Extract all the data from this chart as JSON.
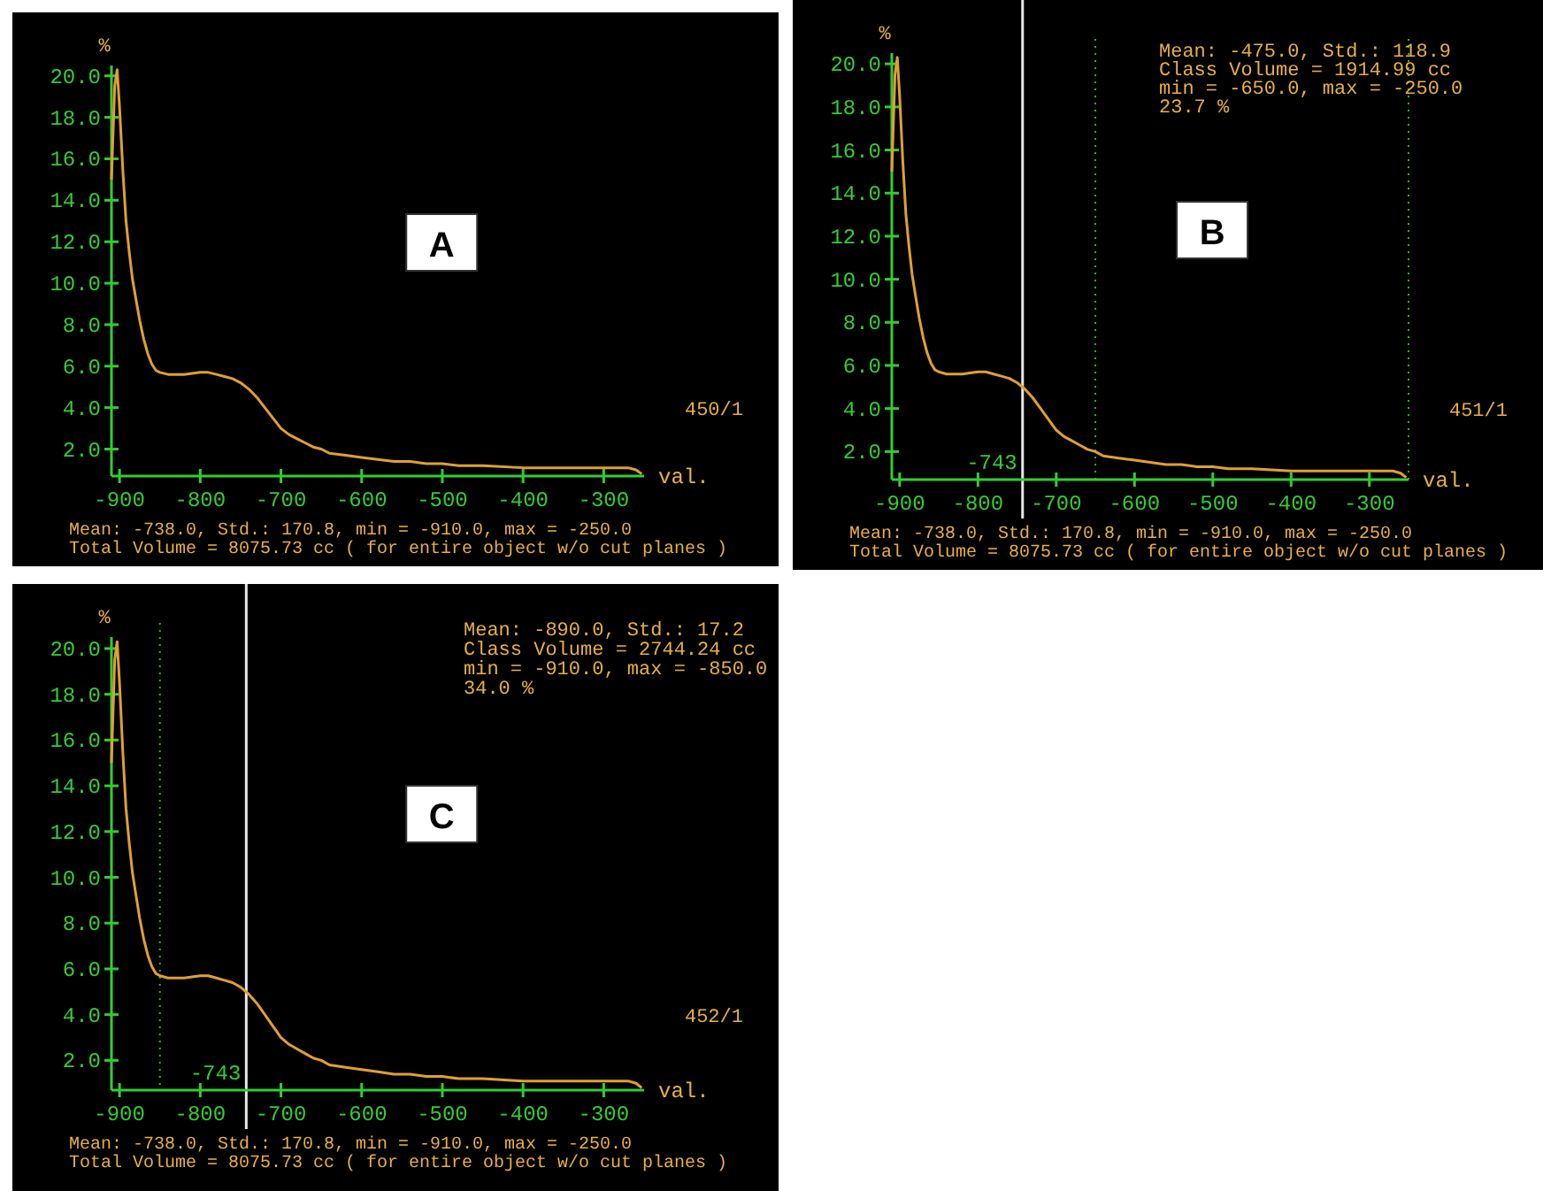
{
  "chart_data": [
    {
      "type": "line",
      "title": "A",
      "xlabel": "val.",
      "ylabel": "%",
      "xlim": [
        -910,
        -250
      ],
      "ylim": [
        0.7,
        20.5
      ],
      "xticks": [
        -900,
        -800,
        -700,
        -600,
        -500,
        -400,
        -300
      ],
      "yticks": [
        {
          "value": 2,
          "label": "2.0"
        },
        {
          "value": 4,
          "label": "4.0"
        },
        {
          "value": 6,
          "label": "6.0"
        },
        {
          "value": 8,
          "label": "8.0"
        },
        {
          "value": 10,
          "label": "10.0"
        },
        {
          "value": 12,
          "label": "12.0"
        },
        {
          "value": 14,
          "label": "14.0"
        },
        {
          "value": 16,
          "label": "16.0"
        },
        {
          "value": 18,
          "label": "18.0"
        },
        {
          "value": 20,
          "label": "20.0"
        }
      ],
      "grid": false,
      "marker": "none",
      "line_style": "solid",
      "series": [
        {
          "color": "#e0a030",
          "x": [
            -910,
            -906,
            -903,
            -900,
            -896,
            -892,
            -888,
            -884,
            -880,
            -875,
            -870,
            -865,
            -860,
            -855,
            -850,
            -840,
            -820,
            -800,
            -790,
            -780,
            -770,
            -760,
            -750,
            -740,
            -730,
            -720,
            -710,
            -700,
            -690,
            -680,
            -670,
            -660,
            -650,
            -640,
            -620,
            -600,
            -580,
            -560,
            -540,
            -520,
            -500,
            -480,
            -450,
            -400,
            -350,
            -300,
            -270,
            -260,
            -253
          ],
          "values": [
            15,
            19.5,
            20.3,
            18.5,
            15.5,
            13,
            11.5,
            10.2,
            9.3,
            8.2,
            7.3,
            6.6,
            6.1,
            5.8,
            5.7,
            5.6,
            5.6,
            5.7,
            5.7,
            5.6,
            5.5,
            5.4,
            5.2,
            4.9,
            4.5,
            4.0,
            3.5,
            3.0,
            2.7,
            2.5,
            2.3,
            2.1,
            2.0,
            1.8,
            1.7,
            1.6,
            1.5,
            1.4,
            1.4,
            1.3,
            1.3,
            1.2,
            1.2,
            1.1,
            1.1,
            1.1,
            1.1,
            1.0,
            0.8
          ]
        }
      ],
      "annotations": [
        "450/1",
        "Mean: -738.0, Std.: 170.8, min = -910.0, max = -250.0",
        "Total Volume = 8075.73 cc ( for entire object w/o cut planes )"
      ]
    },
    {
      "type": "line",
      "title": "B",
      "xlabel": "val.",
      "ylabel": "%",
      "xlim": [
        -910,
        -250
      ],
      "ylim": [
        0.7,
        20.5
      ],
      "xticks": [
        -900,
        -800,
        -700,
        -600,
        -500,
        -400,
        -300
      ],
      "yticks": [
        {
          "value": 2,
          "label": "2.0"
        },
        {
          "value": 4,
          "label": "4.0"
        },
        {
          "value": 6,
          "label": "6.0"
        },
        {
          "value": 8,
          "label": "8.0"
        },
        {
          "value": 10,
          "label": "10.0"
        },
        {
          "value": 12,
          "label": "12.0"
        },
        {
          "value": 14,
          "label": "14.0"
        },
        {
          "value": 16,
          "label": "16.0"
        },
        {
          "value": 18,
          "label": "18.0"
        },
        {
          "value": 20,
          "label": "20.0"
        }
      ],
      "grid": false,
      "marker": "none",
      "line_style": "solid",
      "series": [
        {
          "color": "#e0a030",
          "x": [
            -910,
            -906,
            -903,
            -900,
            -896,
            -892,
            -888,
            -884,
            -880,
            -875,
            -870,
            -865,
            -860,
            -855,
            -850,
            -840,
            -820,
            -800,
            -790,
            -780,
            -770,
            -760,
            -750,
            -740,
            -730,
            -720,
            -710,
            -700,
            -690,
            -680,
            -670,
            -660,
            -650,
            -640,
            -620,
            -600,
            -580,
            -560,
            -540,
            -520,
            -500,
            -480,
            -450,
            -400,
            -350,
            -300,
            -270,
            -260,
            -253
          ],
          "values": [
            15,
            19.5,
            20.3,
            18.5,
            15.5,
            13,
            11.5,
            10.2,
            9.3,
            8.2,
            7.3,
            6.6,
            6.1,
            5.8,
            5.7,
            5.6,
            5.6,
            5.7,
            5.7,
            5.6,
            5.5,
            5.4,
            5.2,
            4.9,
            4.5,
            4.0,
            3.5,
            3.0,
            2.7,
            2.5,
            2.3,
            2.1,
            2.0,
            1.8,
            1.7,
            1.6,
            1.5,
            1.4,
            1.4,
            1.3,
            1.3,
            1.2,
            1.2,
            1.1,
            1.1,
            1.1,
            1.1,
            1.0,
            0.8
          ]
        }
      ],
      "ref_lines": [
        {
          "axis": "x",
          "value": -743,
          "label": "-743",
          "color": "#e8e8e8",
          "line_style": "solid"
        },
        {
          "axis": "x",
          "value": -650,
          "color": "#22bb22",
          "line_style": "dotted"
        },
        {
          "axis": "x",
          "value": -250,
          "color": "#22bb22",
          "line_style": "dotted"
        }
      ],
      "annotations": [
        "Mean: -475.0, Std.: 118.9",
        "Class Volume = 1914.99 cc",
        "min = -650.0, max = -250.0",
        "23.7 %",
        "451/1",
        "Mean: -738.0, Std.: 170.8, min = -910.0, max = -250.0",
        "Total Volume = 8075.73 cc ( for entire object w/o cut planes )"
      ]
    },
    {
      "type": "line",
      "title": "C",
      "xlabel": "val.",
      "ylabel": "%",
      "xlim": [
        -910,
        -250
      ],
      "ylim": [
        0.7,
        20.5
      ],
      "xticks": [
        -900,
        -800,
        -700,
        -600,
        -500,
        -400,
        -300
      ],
      "yticks": [
        {
          "value": 2,
          "label": "2.0"
        },
        {
          "value": 4,
          "label": "4.0"
        },
        {
          "value": 6,
          "label": "6.0"
        },
        {
          "value": 8,
          "label": "8.0"
        },
        {
          "value": 10,
          "label": "10.0"
        },
        {
          "value": 12,
          "label": "12.0"
        },
        {
          "value": 14,
          "label": "14.0"
        },
        {
          "value": 16,
          "label": "16.0"
        },
        {
          "value": 18,
          "label": "18.0"
        },
        {
          "value": 20,
          "label": "20.0"
        }
      ],
      "grid": false,
      "marker": "none",
      "line_style": "solid",
      "series": [
        {
          "color": "#e0a030",
          "x": [
            -910,
            -906,
            -903,
            -900,
            -896,
            -892,
            -888,
            -884,
            -880,
            -875,
            -870,
            -865,
            -860,
            -855,
            -850,
            -840,
            -820,
            -800,
            -790,
            -780,
            -770,
            -760,
            -750,
            -740,
            -730,
            -720,
            -710,
            -700,
            -690,
            -680,
            -670,
            -660,
            -650,
            -640,
            -620,
            -600,
            -580,
            -560,
            -540,
            -520,
            -500,
            -480,
            -450,
            -400,
            -350,
            -300,
            -270,
            -260,
            -253
          ],
          "values": [
            15,
            19.5,
            20.3,
            18.5,
            15.5,
            13,
            11.5,
            10.2,
            9.3,
            8.2,
            7.3,
            6.6,
            6.1,
            5.8,
            5.7,
            5.6,
            5.6,
            5.7,
            5.7,
            5.6,
            5.5,
            5.4,
            5.2,
            4.9,
            4.5,
            4.0,
            3.5,
            3.0,
            2.7,
            2.5,
            2.3,
            2.1,
            2.0,
            1.8,
            1.7,
            1.6,
            1.5,
            1.4,
            1.4,
            1.3,
            1.3,
            1.2,
            1.2,
            1.1,
            1.1,
            1.1,
            1.1,
            1.0,
            0.8
          ]
        }
      ],
      "ref_lines": [
        {
          "axis": "x",
          "value": -743,
          "label": "-743",
          "color": "#e8e8e8",
          "line_style": "solid"
        },
        {
          "axis": "x",
          "value": -850,
          "color": "#22bb22",
          "line_style": "dotted"
        }
      ],
      "annotations": [
        "Mean: -890.0, Std.: 17.2",
        "Class Volume = 2744.24 cc",
        "min = -910.0, max = -850.0",
        "34.0 %",
        "452/1",
        "Mean: -738.0, Std.: 170.8, min = -910.0, max = -250.0",
        "Total Volume = 8075.73 cc ( for entire object w/o cut planes )"
      ]
    }
  ]
}
